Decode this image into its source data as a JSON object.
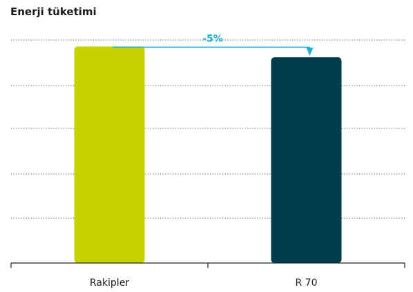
{
  "chart_data": {
    "type": "bar",
    "title": "Enerji tüketimi",
    "xlabel": "",
    "ylabel": "",
    "categories": [
      "Rakipler",
      "R 70"
    ],
    "values": [
      100,
      95
    ],
    "ylim": [
      0,
      110
    ],
    "grid": true,
    "grid_style": "dotted",
    "bar_colors": [
      "#c8d200",
      "#003c4b"
    ],
    "annotation": {
      "label": "-5%",
      "from_category": "Rakipler",
      "to_category": "R 70",
      "color": "#1ab2d6"
    }
  }
}
